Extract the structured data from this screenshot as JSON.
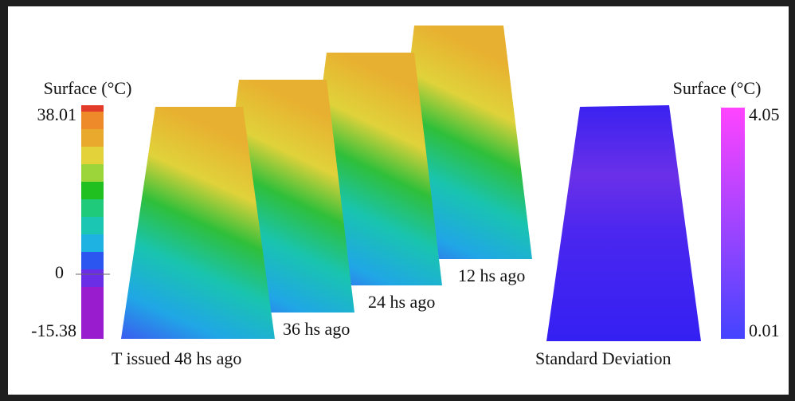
{
  "left_colorbar": {
    "title": "Surface (°C)",
    "max_label": "38.01",
    "mid_label": "0",
    "min_label": "-15.38"
  },
  "maps": [
    {
      "label": "T issued 48 hs ago"
    },
    {
      "label": "36 hs ago"
    },
    {
      "label": "24 hs ago"
    },
    {
      "label": "12 hs ago"
    }
  ],
  "std_map": {
    "label": "Standard Deviation"
  },
  "right_colorbar": {
    "title": "Surface (°C)",
    "max_label": "4.05",
    "min_label": "0.01"
  }
}
